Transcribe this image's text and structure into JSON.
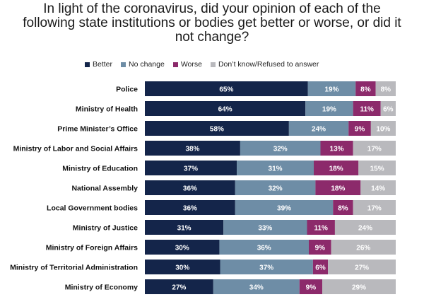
{
  "chart_data": {
    "type": "bar",
    "orientation": "horizontal",
    "stacked": true,
    "percent": true,
    "title": "In light of the coronavirus, did your opinion of each of the\nfollowing state institutions or bodies get better or worse, or did it\nnot change?",
    "legend_position": "top",
    "categories": [
      "Police",
      "Ministry of Health",
      "Prime Minister’s Office",
      "Ministry of Labor and Social Affairs",
      "Ministry of Education",
      "National Assembly",
      "Local Government bodies",
      "Ministry of Justice",
      "Ministry of Foreign Affairs",
      "Ministry of Territorial Administration",
      "Ministry of Economy"
    ],
    "series": [
      {
        "name": "Better",
        "color": "#14254a",
        "label_color": "#ffffff",
        "values": [
          65,
          64,
          58,
          38,
          37,
          36,
          36,
          31,
          30,
          30,
          27
        ]
      },
      {
        "name": "No change",
        "color": "#6e8da6",
        "label_color": "#ffffff",
        "values": [
          19,
          19,
          24,
          32,
          31,
          32,
          39,
          33,
          36,
          37,
          34
        ]
      },
      {
        "name": "Worse",
        "color": "#8c2a6b",
        "label_color": "#ffffff",
        "values": [
          8,
          11,
          9,
          13,
          18,
          18,
          8,
          11,
          9,
          6,
          9
        ]
      },
      {
        "name": "Don’t know/Refused to answer",
        "color": "#b9b9bd",
        "label_color": "#ffffff",
        "values": [
          8,
          6,
          10,
          17,
          15,
          14,
          17,
          24,
          26,
          27,
          29
        ]
      }
    ],
    "label_suffix": "%",
    "grid": false
  }
}
